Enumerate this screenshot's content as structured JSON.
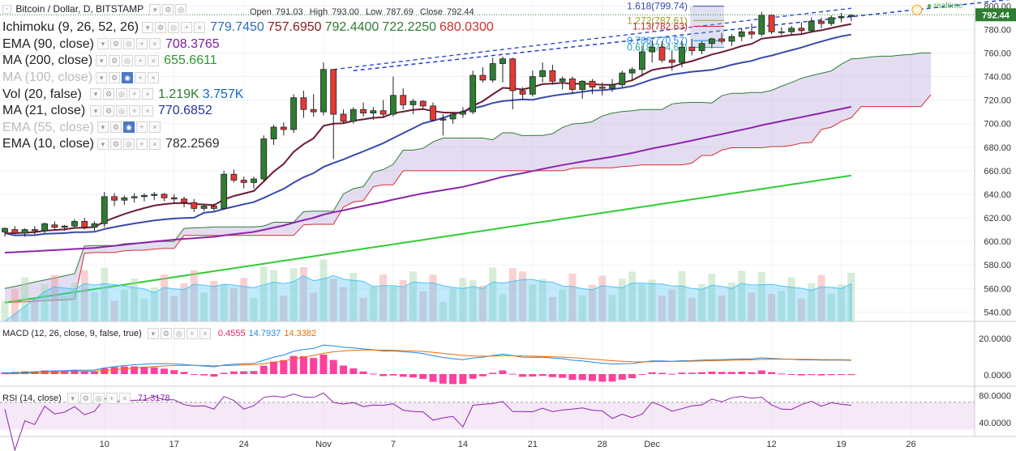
{
  "header": {
    "symbol_title": "Bitcoin / Dollar, D, BITSTAMP",
    "open_label": "Open",
    "open": "791.03",
    "high_label": "High",
    "high": "793.00",
    "low_label": "Low",
    "low": "787.69",
    "close_label": "Close",
    "close": "792.44",
    "realtime": "realtime",
    "last_price": "792.44"
  },
  "indicators": [
    {
      "label": "Ichimoku (9, 26, 52, 26)",
      "values": [
        "779.7450",
        "757.6950",
        "792.4400",
        "722.2250",
        "680.0300"
      ],
      "colors": [
        "#2c6fbf",
        "#8b1a1a",
        "#2e7d32",
        "#2e7d32",
        "#d32f2f"
      ],
      "hidden": false
    },
    {
      "label": "EMA (90, close)",
      "values": [
        "708.3765"
      ],
      "colors": [
        "#7b1fa2"
      ],
      "hidden": false
    },
    {
      "label": "MA (200, close)",
      "values": [
        "655.6611"
      ],
      "colors": [
        "#2e9a2e"
      ],
      "hidden": false
    },
    {
      "label": "MA (100, close)",
      "values": [],
      "colors": [],
      "hidden": true
    },
    {
      "label": "Vol (20, false)",
      "values": [
        "1.219K",
        "3.757K"
      ],
      "colors": [
        "#2e7d32",
        "#1565c0"
      ],
      "hidden": false
    },
    {
      "label": "MA (21, close)",
      "values": [
        "770.6852"
      ],
      "colors": [
        "#283593"
      ],
      "hidden": false
    },
    {
      "label": "EMA (55, close)",
      "values": [],
      "colors": [],
      "hidden": true
    },
    {
      "label": "EMA (10, close)",
      "values": [
        "782.2569"
      ],
      "colors": [
        "#333333"
      ],
      "hidden": false
    }
  ],
  "macd_legend": {
    "label": "MACD (12, 26, close, 9, false, true)",
    "values": [
      "0.4555",
      "14.7937",
      "14.3382"
    ],
    "colors": [
      "#e91e63",
      "#1e88e5",
      "#ef6c00"
    ]
  },
  "rsi_legend": {
    "label": "RSI (14, close)",
    "values": [
      "71.3178"
    ],
    "colors": [
      "#8e24aa"
    ]
  },
  "fib": [
    {
      "label": "1.618(799.74)",
      "color": "#3949ab"
    },
    {
      "label": "1.272(787.61)",
      "color": "#9e9d24"
    },
    {
      "label": "1.13(782.63)",
      "color": "#c62828"
    },
    {
      "label": "0.786(770.57)",
      "color": "#1e88e5"
    },
    {
      "label": "0.618(764.67)",
      "color": "#26a69a"
    }
  ],
  "chart_data": {
    "type": "candlestick",
    "title": "Bitcoin / Dollar, D, BITSTAMP",
    "price_axis": {
      "ticks": [
        540,
        560,
        580,
        600,
        620,
        640,
        660,
        680,
        700,
        720,
        740,
        760,
        780,
        800
      ],
      "range": [
        532,
        805
      ]
    },
    "macd_axis": {
      "ticks": [
        "20.0000",
        "0.0000"
      ]
    },
    "rsi_axis": {
      "ticks": [
        "80.0000",
        "40.0000"
      ],
      "overbought": 70,
      "oversold": 30
    },
    "x_labels": [
      {
        "bar": 10,
        "label": "10"
      },
      {
        "bar": 17,
        "label": "17"
      },
      {
        "bar": 24,
        "label": "24"
      },
      {
        "bar": 32,
        "label": "Nov"
      },
      {
        "bar": 39,
        "label": "7"
      },
      {
        "bar": 46,
        "label": "14"
      },
      {
        "bar": 53,
        "label": "21"
      },
      {
        "bar": 60,
        "label": "28"
      },
      {
        "bar": 65,
        "label": "Dec"
      },
      {
        "bar": 77,
        "label": "12"
      },
      {
        "bar": 84,
        "label": "19"
      },
      {
        "bar": 91,
        "label": "26"
      }
    ],
    "candles": [
      [
        608,
        612,
        604,
        611
      ],
      [
        610,
        613,
        606,
        607
      ],
      [
        607,
        611,
        604,
        610
      ],
      [
        610,
        613,
        606,
        609
      ],
      [
        609,
        616,
        607,
        615
      ],
      [
        614,
        617,
        610,
        612
      ],
      [
        612,
        614,
        609,
        613
      ],
      [
        613,
        619,
        611,
        617
      ],
      [
        617,
        620,
        610,
        612
      ],
      [
        612,
        617,
        609,
        615
      ],
      [
        615,
        642,
        612,
        638
      ],
      [
        638,
        641,
        630,
        635
      ],
      [
        635,
        639,
        631,
        637
      ],
      [
        637,
        641,
        633,
        638
      ],
      [
        638,
        641,
        634,
        639
      ],
      [
        639,
        642,
        635,
        640
      ],
      [
        640,
        641,
        634,
        637
      ],
      [
        637,
        640,
        633,
        636
      ],
      [
        636,
        638,
        629,
        633
      ],
      [
        633,
        636,
        625,
        628
      ],
      [
        628,
        631,
        626,
        630
      ],
      [
        630,
        632,
        626,
        628
      ],
      [
        628,
        660,
        627,
        657
      ],
      [
        657,
        661,
        650,
        652
      ],
      [
        652,
        655,
        645,
        650
      ],
      [
        650,
        655,
        645,
        653
      ],
      [
        653,
        690,
        651,
        687
      ],
      [
        687,
        699,
        682,
        697
      ],
      [
        697,
        701,
        690,
        695
      ],
      [
        695,
        725,
        692,
        722
      ],
      [
        722,
        728,
        705,
        712
      ],
      [
        712,
        725,
        706,
        710
      ],
      [
        710,
        752,
        707,
        746
      ],
      [
        746,
        746,
        670,
        708
      ],
      [
        708,
        712,
        700,
        702
      ],
      [
        702,
        714,
        700,
        712
      ],
      [
        712,
        718,
        706,
        709
      ],
      [
        709,
        714,
        703,
        711
      ],
      [
        711,
        720,
        705,
        708
      ],
      [
        708,
        740,
        706,
        724
      ],
      [
        724,
        730,
        712,
        716
      ],
      [
        716,
        721,
        708,
        719
      ],
      [
        719,
        720,
        712,
        715
      ],
      [
        715,
        718,
        702,
        703
      ],
      [
        703,
        708,
        690,
        704
      ],
      [
        704,
        710,
        700,
        708
      ],
      [
        708,
        714,
        705,
        710
      ],
      [
        710,
        745,
        708,
        741
      ],
      [
        741,
        748,
        735,
        737
      ],
      [
        737,
        756,
        735,
        751
      ],
      [
        751,
        757,
        735,
        755
      ],
      [
        755,
        756,
        712,
        728
      ],
      [
        728,
        731,
        720,
        725
      ],
      [
        725,
        745,
        723,
        740
      ],
      [
        740,
        752,
        735,
        745
      ],
      [
        745,
        750,
        733,
        736
      ],
      [
        736,
        740,
        729,
        738
      ],
      [
        738,
        740,
        725,
        729
      ],
      [
        729,
        737,
        721,
        736
      ],
      [
        736,
        738,
        725,
        731
      ],
      [
        731,
        735,
        724,
        730
      ],
      [
        730,
        738,
        727,
        733
      ],
      [
        733,
        745,
        731,
        743
      ],
      [
        743,
        748,
        737,
        746
      ],
      [
        746,
        766,
        740,
        761
      ],
      [
        761,
        770,
        752,
        765
      ],
      [
        765,
        770,
        752,
        754
      ],
      [
        754,
        762,
        745,
        752
      ],
      [
        752,
        770,
        748,
        765
      ],
      [
        765,
        772,
        758,
        762
      ],
      [
        762,
        770,
        759,
        768
      ],
      [
        768,
        773,
        764,
        772
      ],
      [
        772,
        777,
        768,
        770
      ],
      [
        770,
        776,
        766,
        774
      ],
      [
        774,
        781,
        770,
        778
      ],
      [
        778,
        785,
        772,
        776
      ],
      [
        776,
        795,
        774,
        792
      ],
      [
        792,
        793,
        776,
        778
      ],
      [
        778,
        782,
        775,
        778
      ],
      [
        778,
        783,
        775,
        781
      ],
      [
        781,
        786,
        776,
        779
      ],
      [
        779,
        790,
        777,
        787
      ],
      [
        787,
        790,
        781,
        785
      ],
      [
        785,
        792,
        783,
        790
      ],
      [
        790,
        794,
        786,
        791
      ],
      [
        791,
        793,
        787,
        792
      ]
    ],
    "volume_range": [
      0,
      3757
    ]
  }
}
